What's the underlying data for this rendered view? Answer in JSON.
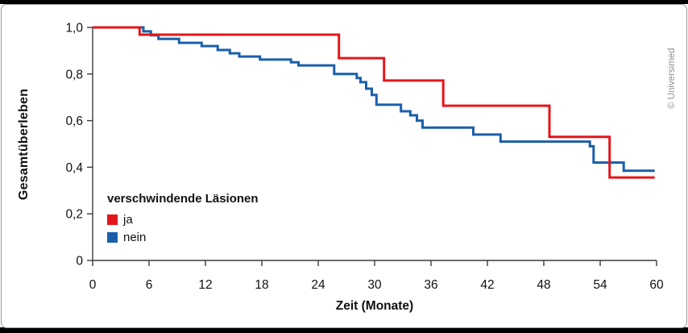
{
  "frame": {
    "copyright": "© Universimed"
  },
  "chart_data": {
    "type": "line",
    "subtype": "kaplan-meier-step",
    "title": "",
    "xlabel": "Zeit (Monate)",
    "ylabel": "Gesamtüberleben",
    "xlim": [
      0,
      60
    ],
    "ylim": [
      0,
      1.0
    ],
    "grid": false,
    "xticks": [
      0,
      6,
      12,
      18,
      24,
      30,
      36,
      42,
      48,
      54,
      60
    ],
    "yticks": [
      {
        "v": 0,
        "label": "0"
      },
      {
        "v": 0.2,
        "label": "0,2"
      },
      {
        "v": 0.4,
        "label": "0,4"
      },
      {
        "v": 0.6,
        "label": "0,6"
      },
      {
        "v": 0.8,
        "label": "0,8"
      },
      {
        "v": 1.0,
        "label": "1,0"
      }
    ],
    "legend": {
      "title": "verschwindende Läsionen",
      "position": "inside-lower-left",
      "entries": [
        {
          "label": "ja",
          "color": "#e3161b"
        },
        {
          "label": "nein",
          "color": "#1b5fa9"
        }
      ]
    },
    "series": [
      {
        "name": "nein",
        "color": "#1b5fa9",
        "points": [
          [
            0,
            1.0
          ],
          [
            5.4,
            0.983
          ],
          [
            6.2,
            0.966
          ],
          [
            7.0,
            0.951
          ],
          [
            9.2,
            0.934
          ],
          [
            11.6,
            0.92
          ],
          [
            13.3,
            0.903
          ],
          [
            14.6,
            0.889
          ],
          [
            15.6,
            0.875
          ],
          [
            17.8,
            0.862
          ],
          [
            21.1,
            0.85
          ],
          [
            21.9,
            0.837
          ],
          [
            25.7,
            0.8
          ],
          [
            28.1,
            0.783
          ],
          [
            28.5,
            0.765
          ],
          [
            29.1,
            0.737
          ],
          [
            29.7,
            0.71
          ],
          [
            30.2,
            0.668
          ],
          [
            32.8,
            0.64
          ],
          [
            33.8,
            0.623
          ],
          [
            34.5,
            0.6
          ],
          [
            35.1,
            0.57
          ],
          [
            40.5,
            0.54
          ],
          [
            43.4,
            0.51
          ],
          [
            52.9,
            0.49
          ],
          [
            53.3,
            0.42
          ],
          [
            56.5,
            0.385
          ],
          [
            59.8,
            0.385
          ]
        ]
      },
      {
        "name": "ja",
        "color": "#e3161b",
        "points": [
          [
            0,
            1.0
          ],
          [
            5.0,
            0.969
          ],
          [
            26.2,
            0.868
          ],
          [
            31.0,
            0.772
          ],
          [
            37.3,
            0.664
          ],
          [
            48.6,
            0.53
          ],
          [
            55.0,
            0.356
          ],
          [
            59.8,
            0.356
          ]
        ]
      }
    ]
  }
}
